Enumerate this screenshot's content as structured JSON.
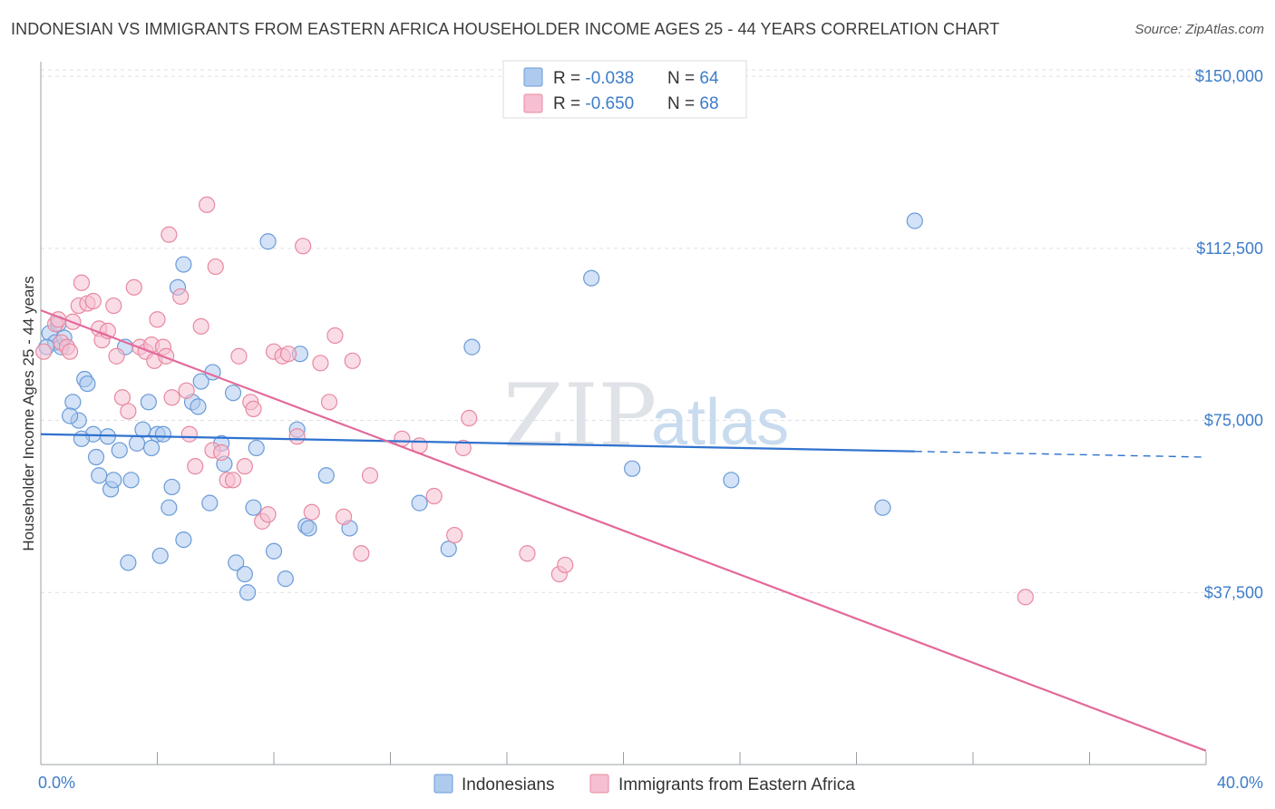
{
  "title": "INDONESIAN VS IMMIGRANTS FROM EASTERN AFRICA HOUSEHOLDER INCOME AGES 25 - 44 YEARS CORRELATION CHART",
  "source": "Source: ZipAtlas.com",
  "watermark": {
    "zip": "ZIP",
    "atlas": "atlas"
  },
  "legend_top": {
    "rows": [
      {
        "r_label": "R = ",
        "r_value": "-0.038",
        "n_label": "N = ",
        "n_value": "64"
      },
      {
        "r_label": "R = ",
        "r_value": "-0.650",
        "n_label": "N = ",
        "n_value": "68"
      }
    ]
  },
  "colors": {
    "blue_fill": "#aecbee",
    "blue_stroke": "#6a9bd8",
    "blue_line": "#2f72cf",
    "pink_fill": "#f6bfd2",
    "pink_stroke": "#e8899f",
    "pink_line": "#e3699a",
    "grid": "#dde1e6",
    "axis": "#9aa0a6"
  },
  "chart_data": {
    "type": "scatter",
    "title": "INDONESIAN VS IMMIGRANTS FROM EASTERN AFRICA HOUSEHOLDER INCOME AGES 25 - 44 YEARS CORRELATION CHART",
    "xlabel": "",
    "ylabel": "Householder Income Ages 25 - 44 years",
    "xlim": [
      0,
      40
    ],
    "ylim": [
      0,
      152000
    ],
    "x_tick_labels": [
      "0.0%",
      "40.0%"
    ],
    "y_ticks": [
      37500,
      75000,
      112500,
      150000
    ],
    "y_tick_labels": [
      "$37,500",
      "$75,000",
      "$112,500",
      "$150,000"
    ],
    "grid": true,
    "legend_position": "bottom-center",
    "series": [
      {
        "name": "Indonesians",
        "r": -0.038,
        "n": 64,
        "trend": {
          "x0": 0,
          "y0": 72000,
          "x1": 40,
          "y1": 67000,
          "solid_until_x": 30
        },
        "points": [
          [
            0.3,
            94000
          ],
          [
            0.5,
            92000
          ],
          [
            0.7,
            91000
          ],
          [
            0.8,
            93000
          ],
          [
            0.6,
            96000
          ],
          [
            1.1,
            79000
          ],
          [
            1.3,
            75000
          ],
          [
            1.0,
            76000
          ],
          [
            1.5,
            84000
          ],
          [
            1.6,
            83000
          ],
          [
            1.8,
            72000
          ],
          [
            1.4,
            71000
          ],
          [
            2.3,
            71500
          ],
          [
            2.7,
            68500
          ],
          [
            3.3,
            70000
          ],
          [
            2.0,
            63000
          ],
          [
            2.4,
            60000
          ],
          [
            3.1,
            62000
          ],
          [
            3.5,
            73000
          ],
          [
            3.7,
            79000
          ],
          [
            2.9,
            91000
          ],
          [
            4.0,
            72000
          ],
          [
            3.8,
            69000
          ],
          [
            4.2,
            72000
          ],
          [
            4.4,
            56000
          ],
          [
            4.5,
            60500
          ],
          [
            3.0,
            44000
          ],
          [
            4.1,
            45500
          ],
          [
            4.9,
            49000
          ],
          [
            5.2,
            79000
          ],
          [
            5.4,
            78000
          ],
          [
            5.5,
            83500
          ],
          [
            5.9,
            85500
          ],
          [
            4.7,
            104000
          ],
          [
            4.9,
            109000
          ],
          [
            6.2,
            70000
          ],
          [
            6.3,
            65500
          ],
          [
            6.6,
            81000
          ],
          [
            6.7,
            44000
          ],
          [
            7.0,
            41500
          ],
          [
            7.1,
            37500
          ],
          [
            7.3,
            56000
          ],
          [
            7.4,
            69000
          ],
          [
            7.8,
            114000
          ],
          [
            8.0,
            46500
          ],
          [
            8.4,
            40500
          ],
          [
            8.8,
            73000
          ],
          [
            9.1,
            52000
          ],
          [
            9.2,
            51500
          ],
          [
            8.9,
            89500
          ],
          [
            9.8,
            63000
          ],
          [
            10.6,
            51500
          ],
          [
            13.0,
            57000
          ],
          [
            14.0,
            47000
          ],
          [
            14.8,
            91000
          ],
          [
            18.9,
            106000
          ],
          [
            20.3,
            64500
          ],
          [
            23.7,
            62000
          ],
          [
            28.9,
            56000
          ],
          [
            30.0,
            118500
          ],
          [
            5.8,
            57000
          ],
          [
            2.5,
            62000
          ],
          [
            0.2,
            91000
          ],
          [
            1.9,
            67000
          ]
        ]
      },
      {
        "name": "Immigrants from Eastern Africa",
        "r": -0.65,
        "n": 68,
        "trend": {
          "x0": 0,
          "y0": 99000,
          "x1": 40,
          "y1": 3000
        },
        "points": [
          [
            0.1,
            90000
          ],
          [
            0.5,
            96000
          ],
          [
            0.6,
            97000
          ],
          [
            0.7,
            92000
          ],
          [
            0.9,
            91000
          ],
          [
            1.0,
            90000
          ],
          [
            1.1,
            96500
          ],
          [
            1.3,
            100000
          ],
          [
            1.4,
            105000
          ],
          [
            1.6,
            100500
          ],
          [
            1.8,
            101000
          ],
          [
            2.0,
            95000
          ],
          [
            2.1,
            92500
          ],
          [
            2.3,
            94500
          ],
          [
            2.5,
            100000
          ],
          [
            2.6,
            89000
          ],
          [
            2.8,
            80000
          ],
          [
            3.0,
            77000
          ],
          [
            3.2,
            104000
          ],
          [
            3.4,
            91000
          ],
          [
            3.6,
            90000
          ],
          [
            3.8,
            91500
          ],
          [
            3.9,
            88000
          ],
          [
            4.0,
            97000
          ],
          [
            4.2,
            91000
          ],
          [
            4.3,
            89000
          ],
          [
            4.4,
            115500
          ],
          [
            4.5,
            80000
          ],
          [
            4.8,
            102000
          ],
          [
            5.0,
            81500
          ],
          [
            5.1,
            72000
          ],
          [
            5.3,
            65000
          ],
          [
            5.5,
            95500
          ],
          [
            5.7,
            122000
          ],
          [
            5.9,
            68500
          ],
          [
            6.0,
            108500
          ],
          [
            6.2,
            68000
          ],
          [
            6.4,
            62000
          ],
          [
            6.6,
            62000
          ],
          [
            6.8,
            89000
          ],
          [
            7.0,
            65000
          ],
          [
            7.2,
            79000
          ],
          [
            7.3,
            77500
          ],
          [
            7.6,
            53000
          ],
          [
            7.8,
            54500
          ],
          [
            8.0,
            90000
          ],
          [
            8.3,
            89000
          ],
          [
            8.5,
            89500
          ],
          [
            8.8,
            71500
          ],
          [
            9.0,
            113000
          ],
          [
            9.3,
            55000
          ],
          [
            9.6,
            87500
          ],
          [
            9.9,
            79000
          ],
          [
            10.1,
            93500
          ],
          [
            10.4,
            54000
          ],
          [
            10.7,
            88000
          ],
          [
            11.0,
            46000
          ],
          [
            11.3,
            63000
          ],
          [
            12.4,
            71000
          ],
          [
            13.0,
            69500
          ],
          [
            13.5,
            58500
          ],
          [
            14.2,
            50000
          ],
          [
            14.5,
            69000
          ],
          [
            14.7,
            75500
          ],
          [
            16.7,
            46000
          ],
          [
            17.8,
            41500
          ],
          [
            18.0,
            43500
          ],
          [
            33.8,
            36500
          ]
        ]
      }
    ]
  },
  "legend_bottom": {
    "items": [
      {
        "label": "Indonesians"
      },
      {
        "label": "Immigrants from Eastern Africa"
      }
    ]
  }
}
